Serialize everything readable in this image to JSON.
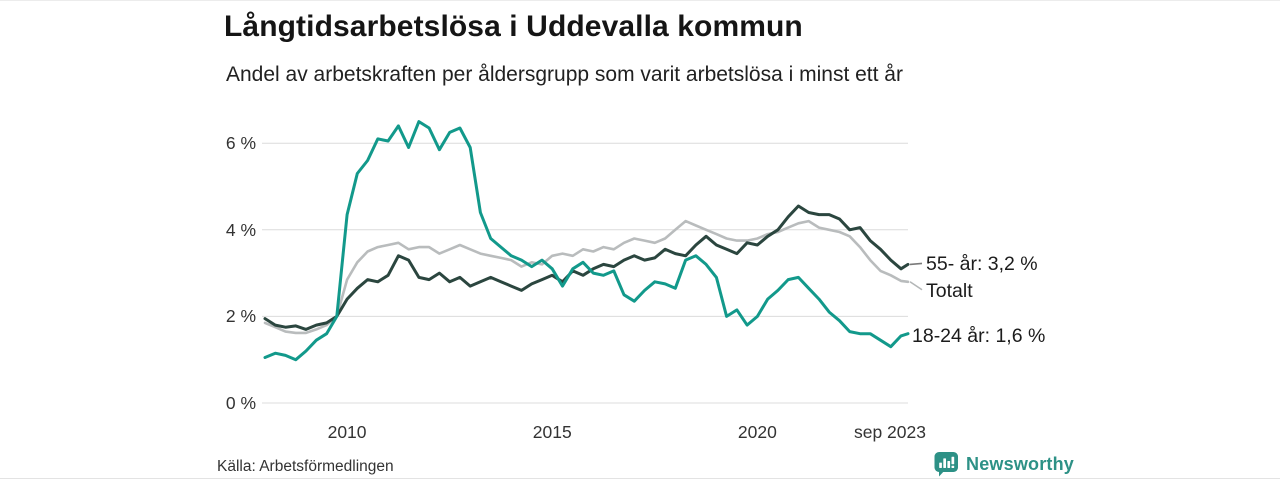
{
  "header": {
    "title": "Långtidsarbetslösa i Uddevalla kommun",
    "subtitle": "Andel av arbetskraften per åldersgrupp som varit arbetslösa i minst ett år"
  },
  "footer": {
    "source": "Källa: Arbetsförmedlingen",
    "brand": "Newsworthy"
  },
  "colors": {
    "teal_line": "#12998b",
    "dark_green_line": "#2b463f",
    "gray_line": "#b9bcbd",
    "grid": "#dcdcdc",
    "axis_text": "#333333",
    "label_text": "#1c1c1c",
    "title_text": "#151515",
    "brand_teal": "#2d9186",
    "connector_dark": "#7a7a7a",
    "connector_gray": "#b3b6b7"
  },
  "chart_data": {
    "type": "line",
    "title": "Långtidsarbetslösa i Uddevalla kommun",
    "subtitle": "Andel av arbetskraften per åldersgrupp som varit arbetslösa i minst ett år",
    "xlabel": "",
    "ylabel": "",
    "unit": "%",
    "grid": "horizontal",
    "legend_position": "right-end-labels",
    "ylim": [
      0,
      6.8
    ],
    "x_range": [
      2008,
      2023.67
    ],
    "y_ticks": [
      {
        "value": 0,
        "label": "0 %"
      },
      {
        "value": 2,
        "label": "2 %"
      },
      {
        "value": 4,
        "label": "4 %"
      },
      {
        "value": 6,
        "label": "6 %"
      }
    ],
    "x_ticks": [
      {
        "value": 2010,
        "label": "2010"
      },
      {
        "value": 2015,
        "label": "2015"
      },
      {
        "value": 2020,
        "label": "2020"
      },
      {
        "value": 2023.67,
        "label": "sep 2023",
        "align": "end"
      }
    ],
    "x": [
      2008,
      2008.25,
      2008.5,
      2008.75,
      2009,
      2009.25,
      2009.5,
      2009.75,
      2010,
      2010.25,
      2010.5,
      2010.75,
      2011,
      2011.25,
      2011.5,
      2011.75,
      2012,
      2012.25,
      2012.5,
      2012.75,
      2013,
      2013.25,
      2013.5,
      2013.75,
      2014,
      2014.25,
      2014.5,
      2014.75,
      2015,
      2015.25,
      2015.5,
      2015.75,
      2016,
      2016.25,
      2016.5,
      2016.75,
      2017,
      2017.25,
      2017.5,
      2017.75,
      2018,
      2018.25,
      2018.5,
      2018.75,
      2019,
      2019.25,
      2019.5,
      2019.75,
      2020,
      2020.25,
      2020.5,
      2020.75,
      2021,
      2021.25,
      2021.5,
      2021.75,
      2022,
      2022.25,
      2022.5,
      2022.75,
      2023,
      2023.25,
      2023.5,
      2023.67
    ],
    "series": [
      {
        "name": "Totalt",
        "end_label": "Totalt",
        "end_value_label": null,
        "color": "#b9bcbd",
        "stroke_width": 2.6,
        "connector": true,
        "connector_color": "#b3b6b7",
        "values": [
          1.85,
          1.75,
          1.65,
          1.62,
          1.62,
          1.7,
          1.8,
          2.0,
          2.85,
          3.25,
          3.5,
          3.6,
          3.65,
          3.7,
          3.55,
          3.6,
          3.6,
          3.45,
          3.55,
          3.65,
          3.55,
          3.45,
          3.4,
          3.35,
          3.3,
          3.15,
          3.25,
          3.2,
          3.4,
          3.45,
          3.4,
          3.55,
          3.5,
          3.6,
          3.55,
          3.7,
          3.8,
          3.75,
          3.7,
          3.8,
          4.0,
          4.2,
          4.1,
          4.0,
          3.9,
          3.8,
          3.75,
          3.75,
          3.8,
          3.9,
          3.95,
          4.05,
          4.15,
          4.2,
          4.05,
          4.0,
          3.95,
          3.85,
          3.6,
          3.3,
          3.05,
          2.95,
          2.82,
          2.8
        ]
      },
      {
        "name": "55- år",
        "end_label": "55- år: 3,2 %",
        "end_value_label": "3,2 %",
        "color": "#2b463f",
        "stroke_width": 3,
        "connector": true,
        "connector_color": "#7a7a7a",
        "values": [
          1.95,
          1.8,
          1.75,
          1.78,
          1.7,
          1.8,
          1.85,
          2.0,
          2.4,
          2.65,
          2.85,
          2.8,
          2.95,
          3.4,
          3.3,
          2.9,
          2.85,
          3.0,
          2.8,
          2.9,
          2.7,
          2.8,
          2.9,
          2.8,
          2.7,
          2.6,
          2.75,
          2.85,
          2.95,
          2.8,
          3.05,
          2.95,
          3.1,
          3.2,
          3.15,
          3.3,
          3.4,
          3.3,
          3.35,
          3.55,
          3.45,
          3.4,
          3.65,
          3.85,
          3.65,
          3.55,
          3.45,
          3.7,
          3.65,
          3.85,
          4.0,
          4.3,
          4.55,
          4.4,
          4.35,
          4.35,
          4.25,
          4.0,
          4.05,
          3.75,
          3.55,
          3.3,
          3.1,
          3.2
        ]
      },
      {
        "name": "18-24 år",
        "end_label": "18-24 år: 1,6 %",
        "end_value_label": "1,6 %",
        "color": "#12998b",
        "stroke_width": 3,
        "connector": false,
        "connector_color": null,
        "values": [
          1.05,
          1.15,
          1.1,
          1.0,
          1.2,
          1.45,
          1.6,
          2.0,
          4.35,
          5.3,
          5.6,
          6.1,
          6.05,
          6.4,
          5.9,
          6.5,
          6.35,
          5.85,
          6.25,
          6.35,
          5.9,
          4.4,
          3.8,
          3.6,
          3.4,
          3.3,
          3.15,
          3.3,
          3.1,
          2.7,
          3.1,
          3.25,
          3.0,
          2.95,
          3.05,
          2.5,
          2.35,
          2.6,
          2.8,
          2.75,
          2.65,
          3.3,
          3.4,
          3.2,
          2.9,
          2.0,
          2.15,
          1.8,
          2.0,
          2.4,
          2.6,
          2.85,
          2.9,
          2.65,
          2.4,
          2.1,
          1.9,
          1.65,
          1.6,
          1.6,
          1.45,
          1.3,
          1.55,
          1.6
        ]
      }
    ]
  }
}
